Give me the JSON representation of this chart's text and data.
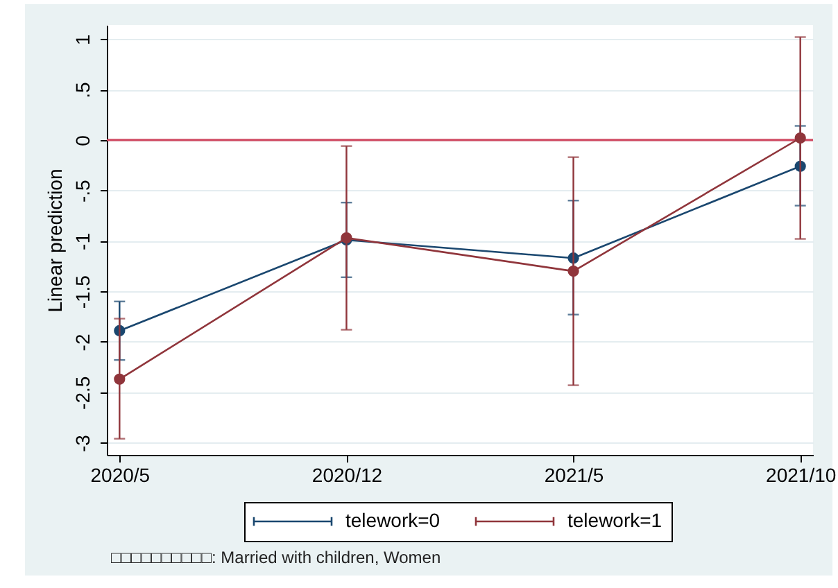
{
  "chart_data": {
    "type": "line",
    "ylabel": "Linear prediction",
    "categories": [
      "2020/5",
      "2020/12",
      "2021/5",
      "2021/10"
    ],
    "series": [
      {
        "name": "telework=0",
        "color": "#1a476f",
        "values": [
          -1.89,
          -0.99,
          -1.17,
          -0.26
        ],
        "errors": [
          [
            -2.18,
            -1.6
          ],
          [
            -1.36,
            -0.62
          ],
          [
            -1.73,
            -0.6
          ],
          [
            -0.65,
            0.14
          ]
        ]
      },
      {
        "name": "telework=1",
        "color": "#90353b",
        "values": [
          -2.37,
          -0.97,
          -1.3,
          0.02
        ],
        "errors": [
          [
            -2.96,
            -1.77
          ],
          [
            -1.88,
            -0.06
          ],
          [
            -2.43,
            -0.17
          ],
          [
            -0.98,
            1.02
          ]
        ]
      }
    ],
    "ylim": [
      -3.12,
      1.14
    ],
    "yticks": [
      1,
      {
        "value": 0.5,
        "label": ".5"
      },
      0,
      {
        "value": -0.5,
        "label": "-.5"
      },
      -1,
      -1.5,
      -2,
      -2.5,
      -3
    ],
    "ref_lines": [
      {
        "axis": "y",
        "value": 0,
        "color": "#d04a62"
      }
    ],
    "grid": "y",
    "legend": "bottom",
    "marker": "circle",
    "line_style": "solid",
    "annotations": [
      "□□□□□□□□□□: Married with children, Women"
    ]
  }
}
